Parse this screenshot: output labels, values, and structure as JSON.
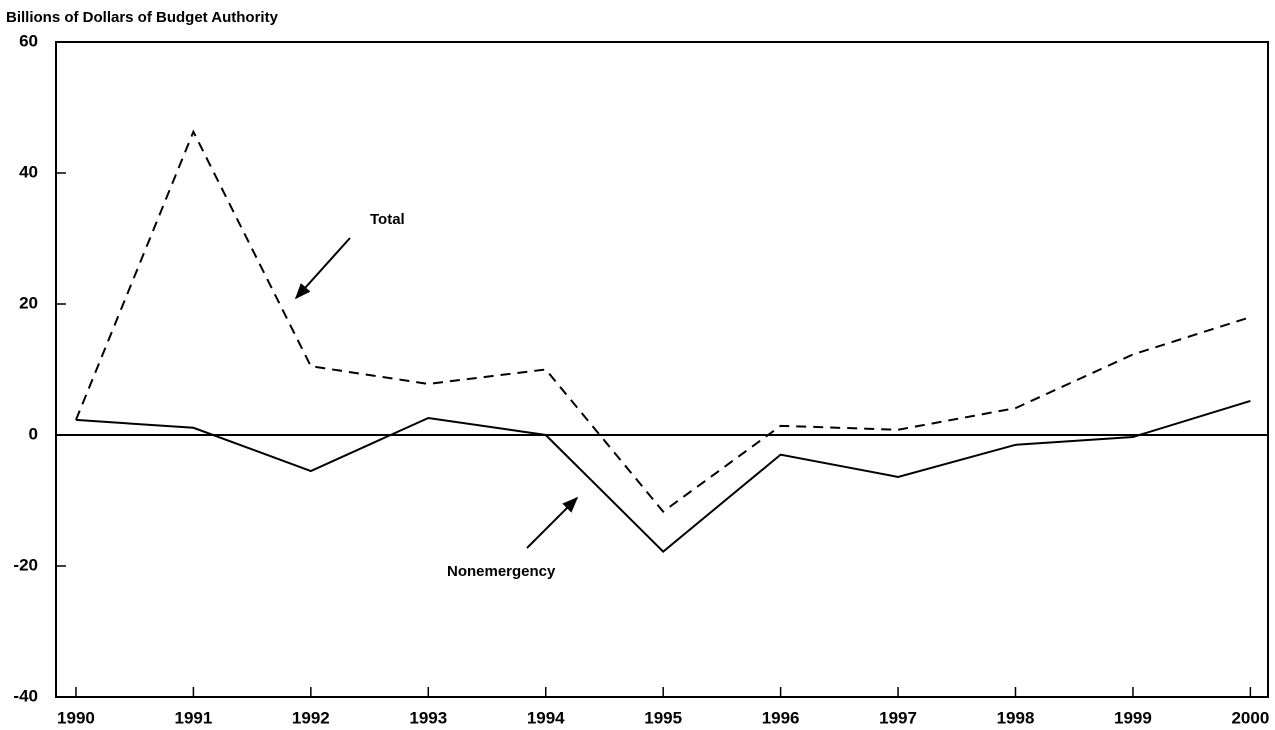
{
  "chart_data": {
    "type": "line",
    "y_axis_label": "Billions of Dollars of Budget Authority",
    "x": [
      1990,
      1991,
      1992,
      1993,
      1994,
      1995,
      1996,
      1997,
      1998,
      1999,
      2000
    ],
    "series": [
      {
        "name": "Total",
        "color": "#000000",
        "style": "dashed",
        "values": [
          2.3,
          46.3,
          10.5,
          7.8,
          10,
          -11.7,
          1.4,
          0.8,
          4.1,
          12.3,
          18
        ]
      },
      {
        "name": "Nonemergency",
        "color": "#000000",
        "style": "solid",
        "values": [
          2.3,
          1.1,
          -5.5,
          2.6,
          0,
          -17.8,
          -3,
          -6.4,
          -1.5,
          -0.3,
          5.2
        ]
      }
    ],
    "xlim": [
      1989.83,
      2000.15
    ],
    "xticks": [
      1990,
      1991,
      1992,
      1993,
      1994,
      1995,
      1996,
      1997,
      1998,
      1999,
      2000
    ],
    "ylim": [
      -40,
      60
    ],
    "yticks": [
      -40,
      -20,
      0,
      20,
      40,
      60
    ],
    "zero_line": true
  }
}
